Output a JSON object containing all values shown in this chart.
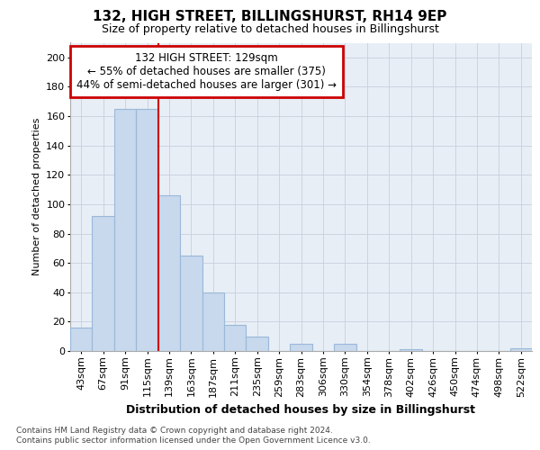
{
  "title1": "132, HIGH STREET, BILLINGSHURST, RH14 9EP",
  "title2": "Size of property relative to detached houses in Billingshurst",
  "xlabel": "Distribution of detached houses by size in Billingshurst",
  "ylabel": "Number of detached properties",
  "categories": [
    "43sqm",
    "67sqm",
    "91sqm",
    "115sqm",
    "139sqm",
    "163sqm",
    "187sqm",
    "211sqm",
    "235sqm",
    "259sqm",
    "283sqm",
    "306sqm",
    "330sqm",
    "354sqm",
    "378sqm",
    "402sqm",
    "426sqm",
    "450sqm",
    "474sqm",
    "498sqm",
    "522sqm"
  ],
  "values": [
    16,
    92,
    165,
    165,
    106,
    65,
    40,
    18,
    10,
    0,
    5,
    0,
    5,
    0,
    0,
    1,
    0,
    0,
    0,
    0,
    2
  ],
  "bar_color": "#c8d8ed",
  "bar_edge_color": "#9ab8d8",
  "vline_pos": 3.5,
  "annotation_line1": "132 HIGH STREET: 129sqm",
  "annotation_line2": "← 55% of detached houses are smaller (375)",
  "annotation_line3": "44% of semi-detached houses are larger (301) →",
  "annotation_box_color": "#ffffff",
  "annotation_box_edge": "#cc0000",
  "vline_color": "#cc0000",
  "grid_color": "#c8d0dc",
  "ylim": [
    0,
    210
  ],
  "yticks": [
    0,
    20,
    40,
    60,
    80,
    100,
    120,
    140,
    160,
    180,
    200
  ],
  "footnote1": "Contains HM Land Registry data © Crown copyright and database right 2024.",
  "footnote2": "Contains public sector information licensed under the Open Government Licence v3.0.",
  "background_color": "#e8eef6",
  "fig_bg": "#ffffff",
  "title1_fontsize": 11,
  "title2_fontsize": 9,
  "ylabel_fontsize": 8,
  "xlabel_fontsize": 9,
  "tick_fontsize": 8,
  "annot_fontsize": 8.5,
  "footnote_fontsize": 6.5
}
